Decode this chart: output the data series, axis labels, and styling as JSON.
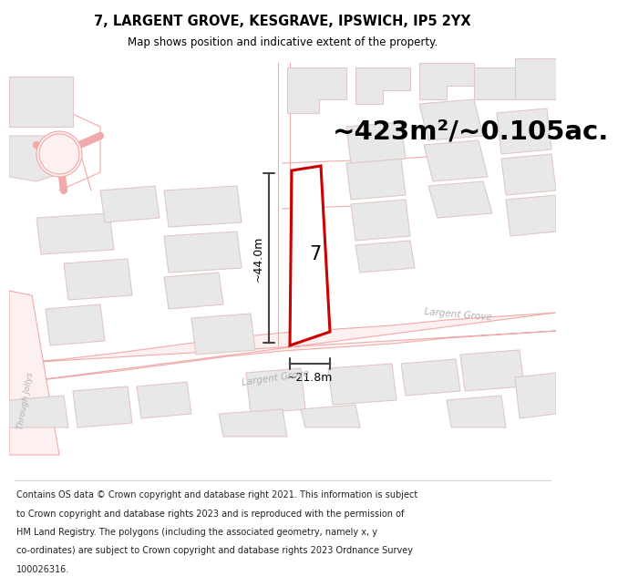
{
  "title_line1": "7, LARGENT GROVE, KESGRAVE, IPSWICH, IP5 2YX",
  "title_line2": "Map shows position and indicative extent of the property.",
  "area_text": "~423m²/~0.105ac.",
  "label_7": "7",
  "dim_vertical": "~44.0m",
  "dim_horizontal": "~21.8m",
  "street_largent1": "Largent Grove",
  "street_largent2": "Largent Grove",
  "street_through": "Through Jollys",
  "footer_lines": [
    "Contains OS data © Crown copyright and database right 2021. This information is subject",
    "to Crown copyright and database rights 2023 and is reproduced with the permission of",
    "HM Land Registry. The polygons (including the associated geometry, namely x, y",
    "co-ordinates) are subject to Crown copyright and database rights 2023 Ordnance Survey",
    "100026316."
  ],
  "bg_color": "#ffffff",
  "map_bg": "#f9f8f8",
  "road_fill": "#fdf0f0",
  "road_color": "#f0aaaa",
  "building_fill": "#e8e8e8",
  "building_edge": "#e0c8c8",
  "property_color": "#cc0000",
  "property_fill": "#ffffff",
  "dim_color": "#444444",
  "text_color": "#000000",
  "road_text_color": "#bbbbbb",
  "title_fontsize": 10.5,
  "subtitle_fontsize": 8.5,
  "area_fontsize": 21,
  "footer_fontsize": 7.0
}
